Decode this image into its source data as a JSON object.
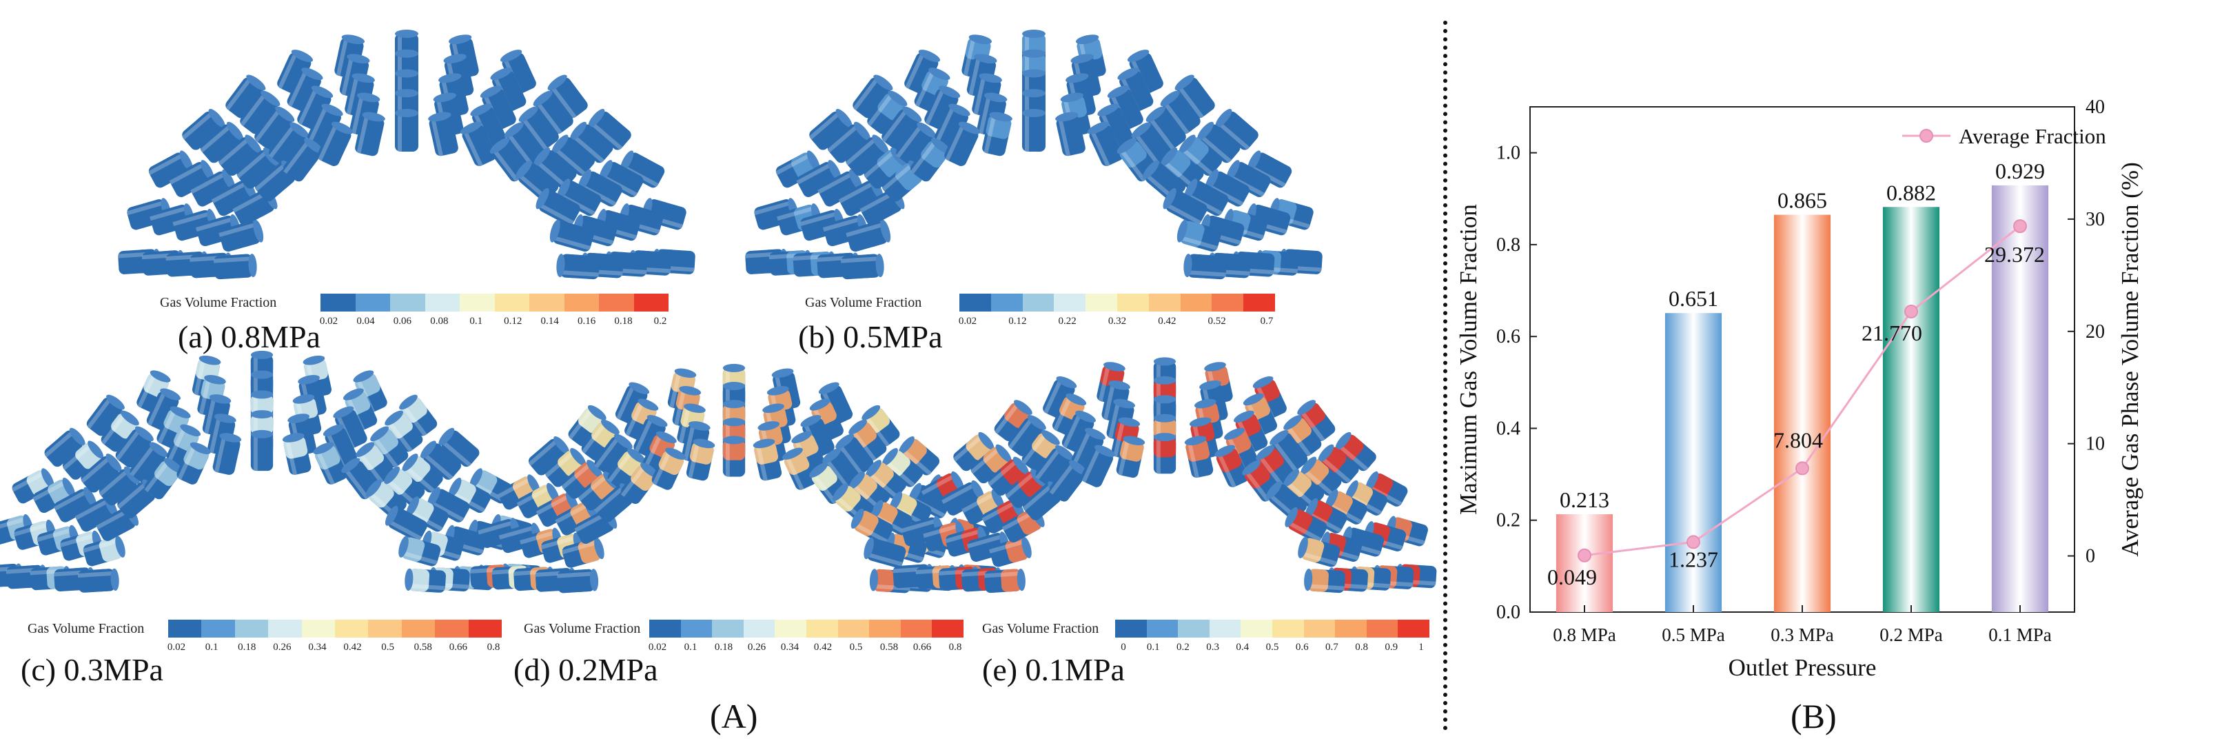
{
  "figure_labels": {
    "a": "(A)",
    "b": "(B)"
  },
  "simulations": [
    {
      "caption": "(a) 0.8MPa",
      "colorbar_title": "Gas Volume Fraction",
      "ticks": [
        "0.02",
        "0.04",
        "0.06",
        "0.08",
        "0.1",
        "0.12",
        "0.14",
        "0.16",
        "0.18",
        "0.2"
      ],
      "gas_level": 0.0
    },
    {
      "caption": "(b) 0.5MPa",
      "colorbar_title": "Gas Volume Fraction",
      "ticks": [
        "0.02",
        "0.12",
        "0.22",
        "0.32",
        "0.42",
        "0.52",
        "0.7"
      ],
      "gas_level": 0.08
    },
    {
      "caption": "(c) 0.3MPa",
      "colorbar_title": "Gas Volume Fraction",
      "ticks": [
        "0.02",
        "0.1",
        "0.18",
        "0.26",
        "0.34",
        "0.42",
        "0.5",
        "0.58",
        "0.66",
        "0.8"
      ],
      "gas_level": 0.25
    },
    {
      "caption": "(d) 0.2MPa",
      "colorbar_title": "Gas Volume Fraction",
      "ticks": [
        "0.02",
        "0.1",
        "0.18",
        "0.26",
        "0.34",
        "0.42",
        "0.5",
        "0.58",
        "0.66",
        "0.8"
      ],
      "gas_level": 0.55
    },
    {
      "caption": "(e) 0.1MPa",
      "colorbar_title": "Gas Volume Fraction",
      "ticks": [
        "0",
        "0.1",
        "0.2",
        "0.3",
        "0.4",
        "0.5",
        "0.6",
        "0.7",
        "0.8",
        "0.9",
        "1"
      ],
      "gas_level": 0.75
    }
  ],
  "colormap": [
    "#2b6cb0",
    "#5b9bd5",
    "#9ecae1",
    "#d6ecf0",
    "#f4f7d0",
    "#fbe3a0",
    "#fcc885",
    "#f9a565",
    "#f47b4f",
    "#e8392b"
  ],
  "chart_data": {
    "type": "bar",
    "categories": [
      "0.8 MPa",
      "0.5 MPa",
      "0.3 MPa",
      "0.2 MPa",
      "0.1 MPa"
    ],
    "xlabel": "Outlet Pressure",
    "series": [
      {
        "values": [
          0.213,
          0.651,
          0.865,
          0.882,
          0.929
        ],
        "labels": [
          "0.213",
          "0.651",
          "0.865",
          "0.882",
          "0.929"
        ],
        "colors": [
          "#f28b8b",
          "#5a9bd4",
          "#f27a4a",
          "#14917a",
          "#a99bd0"
        ],
        "axis": "left"
      },
      {
        "name": "Average Fraction",
        "values": [
          0.049,
          1.237,
          7.804,
          21.77,
          29.372
        ],
        "labels": [
          "0.049",
          "1.237",
          "7.804",
          "21.770",
          "29.372"
        ],
        "color": "#f2a7c6",
        "axis": "right",
        "kind": "line"
      }
    ],
    "ylabel": "Maximum Gas Volume Fraction",
    "ylim": [
      0,
      1.1
    ],
    "yticks": [
      "0.0",
      "0.2",
      "0.4",
      "0.6",
      "0.8",
      "1.0"
    ],
    "y2label": "Average Gas Phase Volume Fraction (%)",
    "y2lim": [
      -5,
      40
    ],
    "y2ticks": [
      "0",
      "10",
      "20",
      "30",
      "40"
    ],
    "legend": "top-right"
  }
}
